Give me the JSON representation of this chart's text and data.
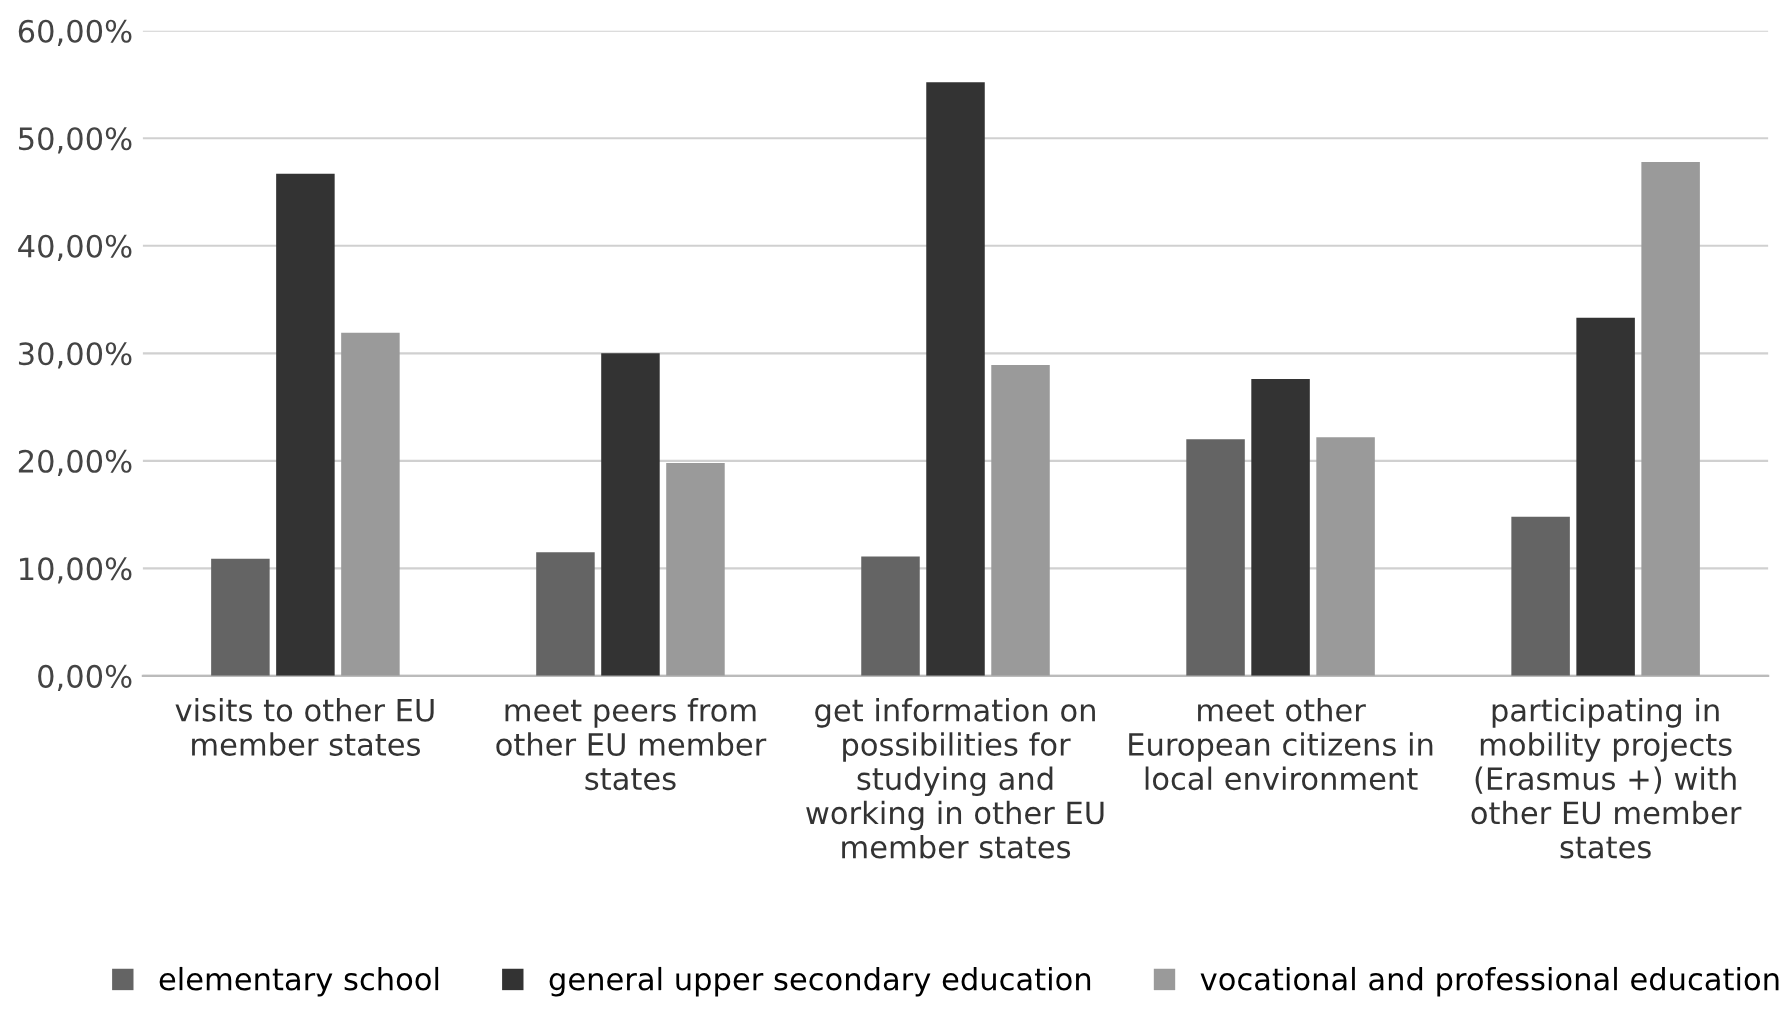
{
  "chart_data": {
    "type": "bar",
    "categories": [
      "visits to other EU\nmember states",
      "meet peers from\nother EU member\nstates",
      "get information on\npossibilities for\nstudying and\nworking in other EU\nmember states",
      "meet other\nEuropean citizens in\nlocal environment",
      "participating in\nmobility projects\n(Erasmus +) with\nother EU member\nstates"
    ],
    "series": [
      {
        "name": "elementary school",
        "color": "#646464",
        "values": [
          10.9,
          11.5,
          11.1,
          22.0,
          14.8
        ]
      },
      {
        "name": "general upper secondary education",
        "color": "#333333",
        "values": [
          46.7,
          30.0,
          55.2,
          27.6,
          33.3
        ]
      },
      {
        "name": "vocational and professional education",
        "color": "#9a9a9a",
        "values": [
          31.9,
          19.8,
          28.9,
          22.2,
          47.8
        ]
      }
    ],
    "ylim": [
      0,
      60
    ],
    "yticks": [
      {
        "value": 0,
        "label": "0,00%"
      },
      {
        "value": 10,
        "label": "10,00%"
      },
      {
        "value": 20,
        "label": "20,00%"
      },
      {
        "value": 30,
        "label": "30,00%"
      },
      {
        "value": 40,
        "label": "40,00%"
      },
      {
        "value": 50,
        "label": "50,00%"
      },
      {
        "value": 60,
        "label": "60,00%"
      }
    ],
    "grid": "y",
    "legend": "bottom"
  }
}
